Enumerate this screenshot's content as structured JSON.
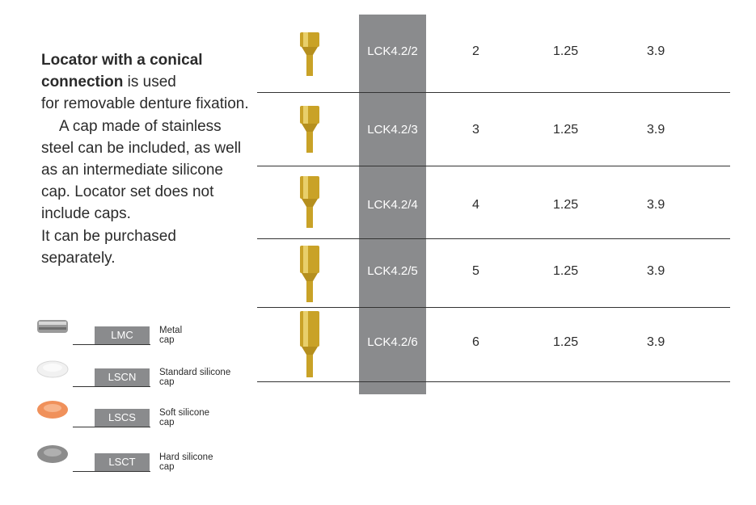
{
  "intro": {
    "bold_lead": "Locator with a conical connection",
    "line1_rest": " is used",
    "line2": "for removable denture fixation.",
    "paragraph2": "A cap made of stainless steel can be included, as well as an intermediate silicone cap. Locator set does not include caps.",
    "paragraph3": "It can be purchased separately."
  },
  "caps": [
    {
      "code": "LMC",
      "desc_line1": "Metal",
      "desc_line2": "cap",
      "color": "#9a9a9a"
    },
    {
      "code": "LSCN",
      "desc_line1": "Standard silicone",
      "desc_line2": "cap",
      "color": "#f1f1f1"
    },
    {
      "code": "LSCS",
      "desc_line1": "Soft silicone",
      "desc_line2": "cap",
      "color": "#f0915b"
    },
    {
      "code": "LSCT",
      "desc_line1": "Hard silicone",
      "desc_line2": "cap",
      "color": "#8c8c8c"
    }
  ],
  "rows": [
    {
      "code": "LCK4.2/2",
      "c1": "2",
      "c2": "1.25",
      "c3": "3.9"
    },
    {
      "code": "LCK4.2/3",
      "c1": "3",
      "c2": "1.25",
      "c3": "3.9"
    },
    {
      "code": "LCK4.2/4",
      "c1": "4",
      "c2": "1.25",
      "c3": "3.9"
    },
    {
      "code": "LCK4.2/5",
      "c1": "5",
      "c2": "1.25",
      "c3": "3.9"
    },
    {
      "code": "LCK4.2/6",
      "c1": "6",
      "c2": "1.25",
      "c3": "3.9"
    }
  ],
  "colors": {
    "gold": "#c9a227",
    "gray_col": "#8a8b8d"
  }
}
